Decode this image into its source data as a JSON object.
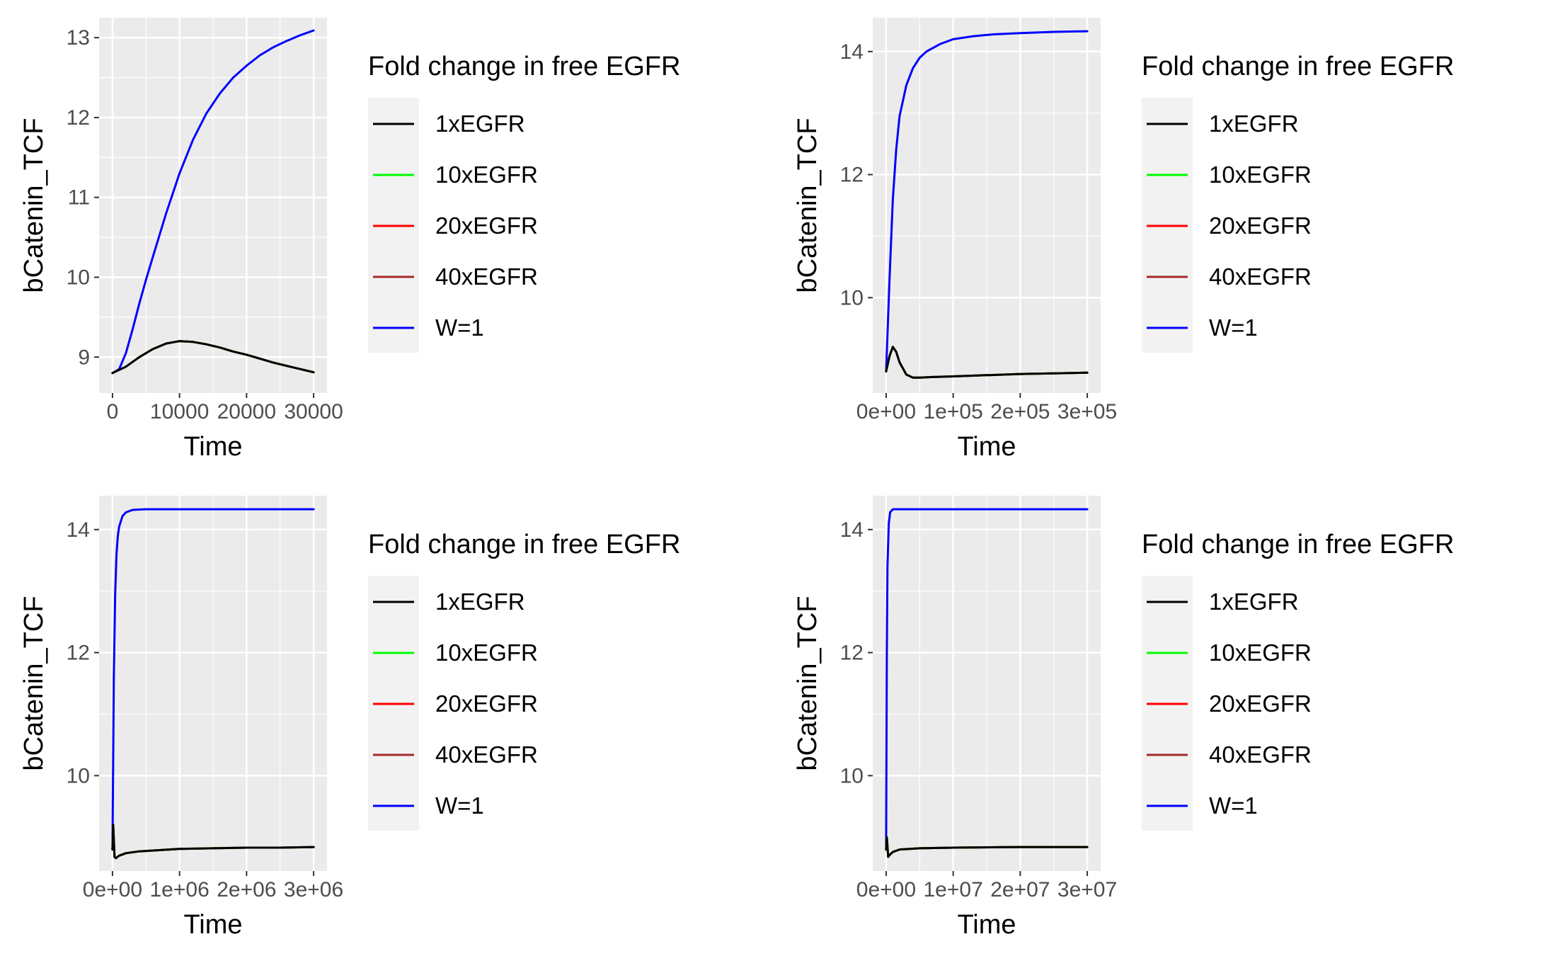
{
  "legend_title": "Fold change in free EGFR",
  "legend_entries": [
    "1xEGFR",
    "10xEGFR",
    "20xEGFR",
    "40xEGFR",
    "W=1"
  ],
  "colors": {
    "1xEGFR": "#000000",
    "10xEGFR": "#00ff00",
    "20xEGFR": "#ff0000",
    "40xEGFR": "#a52a2a",
    "W=1": "#0000ff",
    "panel_bg": "#ebebeb",
    "grid": "#ffffff",
    "tick_text": "#4d4d4d"
  },
  "chart_data": [
    {
      "type": "line",
      "xlabel": "Time",
      "ylabel": "bCatenin_TCF",
      "xlim": [
        -2000,
        32000
      ],
      "ylim": [
        8.55,
        13.25
      ],
      "xticks": [
        0,
        10000,
        20000,
        30000
      ],
      "xtick_labels": [
        "0",
        "10000",
        "20000",
        "30000"
      ],
      "yticks": [
        9,
        10,
        11,
        12,
        13
      ],
      "ytick_labels": [
        "9",
        "10",
        "11",
        "12",
        "13"
      ],
      "legend": "right",
      "grid": true,
      "series": [
        {
          "name": "W=1",
          "x": [
            0,
            1000,
            2000,
            3000,
            4000,
            5000,
            6000,
            8000,
            10000,
            12000,
            14000,
            16000,
            18000,
            20000,
            22000,
            24000,
            26000,
            28000,
            30000
          ],
          "y": [
            8.8,
            8.85,
            9.05,
            9.35,
            9.67,
            9.97,
            10.25,
            10.8,
            11.3,
            11.72,
            12.05,
            12.3,
            12.5,
            12.65,
            12.78,
            12.88,
            12.96,
            13.03,
            13.09
          ]
        },
        {
          "name": "40xEGFR",
          "x": [
            0,
            2000,
            4000,
            6000,
            8000,
            10000,
            12000,
            14000,
            16000,
            18000,
            20000,
            22000,
            24000,
            26000,
            28000,
            30000
          ],
          "y": [
            8.8,
            8.88,
            9.0,
            9.1,
            9.17,
            9.2,
            9.19,
            9.16,
            9.12,
            9.07,
            9.03,
            8.98,
            8.93,
            8.89,
            8.85,
            8.81
          ]
        },
        {
          "name": "20xEGFR",
          "x": [
            0,
            2000,
            4000,
            6000,
            8000,
            10000,
            12000,
            14000,
            16000,
            18000,
            20000,
            22000,
            24000,
            26000,
            28000,
            30000
          ],
          "y": [
            8.8,
            8.88,
            9.0,
            9.1,
            9.17,
            9.2,
            9.19,
            9.16,
            9.12,
            9.07,
            9.03,
            8.98,
            8.93,
            8.89,
            8.85,
            8.81
          ]
        },
        {
          "name": "10xEGFR",
          "x": [
            0,
            2000,
            4000,
            6000,
            8000,
            10000,
            12000,
            14000,
            16000,
            18000,
            20000,
            22000,
            24000,
            26000,
            28000,
            30000
          ],
          "y": [
            8.8,
            8.88,
            9.0,
            9.1,
            9.17,
            9.2,
            9.19,
            9.16,
            9.12,
            9.07,
            9.03,
            8.98,
            8.93,
            8.89,
            8.85,
            8.81
          ]
        },
        {
          "name": "1xEGFR",
          "x": [
            0,
            2000,
            4000,
            6000,
            8000,
            10000,
            12000,
            14000,
            16000,
            18000,
            20000,
            22000,
            24000,
            26000,
            28000,
            30000
          ],
          "y": [
            8.8,
            8.88,
            9.0,
            9.1,
            9.17,
            9.2,
            9.19,
            9.16,
            9.12,
            9.07,
            9.03,
            8.98,
            8.93,
            8.89,
            8.85,
            8.81
          ]
        }
      ]
    },
    {
      "type": "line",
      "xlabel": "Time",
      "ylabel": "bCatenin_TCF",
      "xlim": [
        -20000,
        320000
      ],
      "ylim": [
        8.45,
        14.55
      ],
      "xticks": [
        0,
        100000,
        200000,
        300000
      ],
      "xtick_labels": [
        "0e+00",
        "1e+05",
        "2e+05",
        "3e+05"
      ],
      "yticks": [
        10,
        12,
        14
      ],
      "ytick_labels": [
        "10",
        "12",
        "14"
      ],
      "legend": "right",
      "grid": true,
      "series": [
        {
          "name": "W=1",
          "x": [
            0,
            5000,
            10000,
            15000,
            20000,
            30000,
            40000,
            50000,
            60000,
            80000,
            100000,
            130000,
            160000,
            200000,
            250000,
            300000
          ],
          "y": [
            8.8,
            10.3,
            11.6,
            12.4,
            12.95,
            13.45,
            13.73,
            13.9,
            14.0,
            14.12,
            14.2,
            14.25,
            14.28,
            14.3,
            14.32,
            14.33
          ]
        },
        {
          "name": "40xEGFR",
          "x": [
            0,
            5000,
            10000,
            15000,
            20000,
            30000,
            40000,
            50000,
            70000,
            100000,
            150000,
            200000,
            250000,
            300000
          ],
          "y": [
            8.8,
            9.05,
            9.2,
            9.12,
            8.95,
            8.75,
            8.7,
            8.7,
            8.71,
            8.72,
            8.74,
            8.76,
            8.77,
            8.78
          ]
        },
        {
          "name": "20xEGFR",
          "x": [
            0,
            5000,
            10000,
            15000,
            20000,
            30000,
            40000,
            50000,
            70000,
            100000,
            150000,
            200000,
            250000,
            300000
          ],
          "y": [
            8.8,
            9.05,
            9.2,
            9.12,
            8.95,
            8.75,
            8.7,
            8.7,
            8.71,
            8.72,
            8.74,
            8.76,
            8.77,
            8.78
          ]
        },
        {
          "name": "10xEGFR",
          "x": [
            0,
            5000,
            10000,
            15000,
            20000,
            30000,
            40000,
            50000,
            70000,
            100000,
            150000,
            200000,
            250000,
            300000
          ],
          "y": [
            8.8,
            9.05,
            9.2,
            9.12,
            8.95,
            8.75,
            8.7,
            8.7,
            8.71,
            8.72,
            8.74,
            8.76,
            8.77,
            8.78
          ]
        },
        {
          "name": "1xEGFR",
          "x": [
            0,
            5000,
            10000,
            15000,
            20000,
            30000,
            40000,
            50000,
            70000,
            100000,
            150000,
            200000,
            250000,
            300000
          ],
          "y": [
            8.8,
            9.05,
            9.2,
            9.12,
            8.95,
            8.75,
            8.7,
            8.7,
            8.71,
            8.72,
            8.74,
            8.76,
            8.77,
            8.78
          ]
        }
      ]
    },
    {
      "type": "line",
      "xlabel": "Time",
      "ylabel": "bCatenin_TCF",
      "xlim": [
        -200000,
        3200000
      ],
      "ylim": [
        8.45,
        14.55
      ],
      "xticks": [
        0,
        1000000,
        2000000,
        3000000
      ],
      "xtick_labels": [
        "0e+00",
        "1e+06",
        "2e+06",
        "3e+06"
      ],
      "yticks": [
        10,
        12,
        14
      ],
      "ytick_labels": [
        "10",
        "12",
        "14"
      ],
      "legend": "right",
      "grid": true,
      "series": [
        {
          "name": "W=1",
          "x": [
            0,
            20000,
            40000,
            60000,
            80000,
            100000,
            150000,
            200000,
            300000,
            500000,
            1000000,
            2000000,
            3000000
          ],
          "y": [
            8.8,
            11.6,
            12.95,
            13.6,
            13.9,
            14.05,
            14.22,
            14.28,
            14.32,
            14.33,
            14.33,
            14.33,
            14.33
          ]
        },
        {
          "name": "40xEGFR",
          "x": [
            0,
            10000,
            30000,
            50000,
            100000,
            200000,
            400000,
            700000,
            1000000,
            1500000,
            2000000,
            2500000,
            3000000
          ],
          "y": [
            8.8,
            9.2,
            8.68,
            8.66,
            8.7,
            8.74,
            8.77,
            8.79,
            8.81,
            8.82,
            8.83,
            8.83,
            8.84
          ]
        },
        {
          "name": "20xEGFR",
          "x": [
            0,
            10000,
            30000,
            50000,
            100000,
            200000,
            400000,
            700000,
            1000000,
            1500000,
            2000000,
            2500000,
            3000000
          ],
          "y": [
            8.8,
            9.2,
            8.68,
            8.66,
            8.7,
            8.74,
            8.77,
            8.79,
            8.81,
            8.82,
            8.83,
            8.83,
            8.84
          ]
        },
        {
          "name": "10xEGFR",
          "x": [
            0,
            10000,
            30000,
            50000,
            100000,
            200000,
            400000,
            700000,
            1000000,
            1500000,
            2000000,
            2500000,
            3000000
          ],
          "y": [
            8.8,
            9.2,
            8.68,
            8.66,
            8.7,
            8.74,
            8.77,
            8.79,
            8.81,
            8.82,
            8.83,
            8.83,
            8.84
          ]
        },
        {
          "name": "1xEGFR",
          "x": [
            0,
            10000,
            30000,
            50000,
            100000,
            200000,
            400000,
            700000,
            1000000,
            1500000,
            2000000,
            2500000,
            3000000
          ],
          "y": [
            8.8,
            9.2,
            8.68,
            8.66,
            8.7,
            8.74,
            8.77,
            8.79,
            8.81,
            8.82,
            8.83,
            8.83,
            8.84
          ]
        }
      ]
    },
    {
      "type": "line",
      "xlabel": "Time",
      "ylabel": "bCatenin_TCF",
      "xlim": [
        -2000000,
        32000000
      ],
      "ylim": [
        8.45,
        14.55
      ],
      "xticks": [
        0,
        10000000,
        20000000,
        30000000
      ],
      "xtick_labels": [
        "0e+00",
        "1e+07",
        "2e+07",
        "3e+07"
      ],
      "yticks": [
        10,
        12,
        14
      ],
      "ytick_labels": [
        "10",
        "12",
        "14"
      ],
      "legend": "right",
      "grid": true,
      "series": [
        {
          "name": "W=1",
          "x": [
            0,
            100000,
            200000,
            400000,
            600000,
            1000000,
            3000000,
            10000000,
            30000000
          ],
          "y": [
            8.8,
            12.0,
            13.4,
            14.1,
            14.28,
            14.33,
            14.33,
            14.33,
            14.33
          ]
        },
        {
          "name": "40xEGFR",
          "x": [
            0,
            100000,
            300000,
            600000,
            1000000,
            2000000,
            5000000,
            10000000,
            20000000,
            30000000
          ],
          "y": [
            8.8,
            9.0,
            8.68,
            8.72,
            8.76,
            8.8,
            8.82,
            8.83,
            8.84,
            8.84
          ]
        },
        {
          "name": "20xEGFR",
          "x": [
            0,
            100000,
            300000,
            600000,
            1000000,
            2000000,
            5000000,
            10000000,
            20000000,
            30000000
          ],
          "y": [
            8.8,
            9.0,
            8.68,
            8.72,
            8.76,
            8.8,
            8.82,
            8.83,
            8.84,
            8.84
          ]
        },
        {
          "name": "10xEGFR",
          "x": [
            0,
            100000,
            300000,
            600000,
            1000000,
            2000000,
            5000000,
            10000000,
            20000000,
            30000000
          ],
          "y": [
            8.8,
            9.0,
            8.68,
            8.72,
            8.76,
            8.8,
            8.82,
            8.83,
            8.84,
            8.84
          ]
        },
        {
          "name": "1xEGFR",
          "x": [
            0,
            100000,
            300000,
            600000,
            1000000,
            2000000,
            5000000,
            10000000,
            20000000,
            30000000
          ],
          "y": [
            8.8,
            9.0,
            8.68,
            8.72,
            8.76,
            8.8,
            8.82,
            8.83,
            8.84,
            8.84
          ]
        }
      ]
    }
  ]
}
